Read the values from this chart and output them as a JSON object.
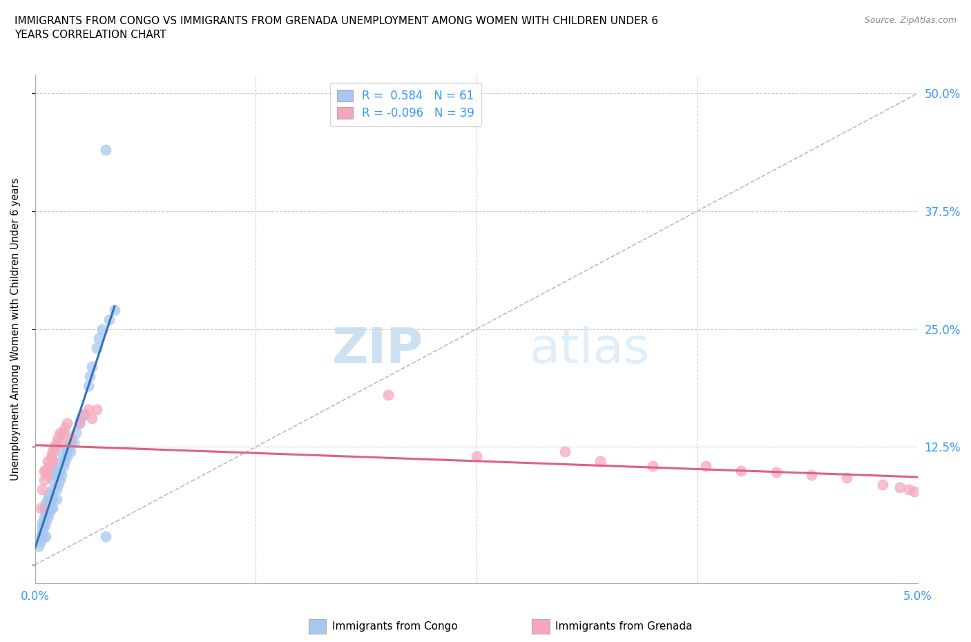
{
  "title": "IMMIGRANTS FROM CONGO VS IMMIGRANTS FROM GRENADA UNEMPLOYMENT AMONG WOMEN WITH CHILDREN UNDER 6\nYEARS CORRELATION CHART",
  "source": "Source: ZipAtlas.com",
  "ylabel": "Unemployment Among Women with Children Under 6 years",
  "xlim": [
    0.0,
    0.05
  ],
  "ylim": [
    -0.02,
    0.52
  ],
  "congo_R": 0.584,
  "congo_N": 61,
  "grenada_R": -0.096,
  "grenada_N": 39,
  "congo_color": "#A8C8F0",
  "grenada_color": "#F5A8BC",
  "congo_line_color": "#3070C0",
  "grenada_line_color": "#E06080",
  "diagonal_color": "#BBBBBB",
  "background_color": "#FFFFFF",
  "watermark_zip": "ZIP",
  "watermark_atlas": "atlas",
  "congo_x": [
    0.0002,
    0.0003,
    0.0003,
    0.0004,
    0.0004,
    0.0004,
    0.0005,
    0.0005,
    0.0005,
    0.0005,
    0.0006,
    0.0006,
    0.0006,
    0.0006,
    0.0007,
    0.0007,
    0.0007,
    0.0008,
    0.0008,
    0.0008,
    0.0009,
    0.0009,
    0.001,
    0.001,
    0.001,
    0.001,
    0.001,
    0.001,
    0.001,
    0.001,
    0.0012,
    0.0012,
    0.0013,
    0.0013,
    0.0014,
    0.0014,
    0.0015,
    0.0015,
    0.0015,
    0.0016,
    0.0017,
    0.0018,
    0.0018,
    0.0019,
    0.002,
    0.002,
    0.0022,
    0.0023,
    0.0025,
    0.0026,
    0.0028,
    0.003,
    0.0031,
    0.0032,
    0.0035,
    0.0036,
    0.0038,
    0.004,
    0.0042,
    0.0045,
    0.004
  ],
  "congo_y": [
    0.02,
    0.025,
    0.03,
    0.035,
    0.04,
    0.045,
    0.03,
    0.04,
    0.05,
    0.06,
    0.03,
    0.045,
    0.055,
    0.065,
    0.05,
    0.06,
    0.07,
    0.055,
    0.065,
    0.075,
    0.06,
    0.07,
    0.06,
    0.07,
    0.08,
    0.09,
    0.095,
    0.1,
    0.105,
    0.11,
    0.07,
    0.08,
    0.085,
    0.095,
    0.09,
    0.1,
    0.095,
    0.11,
    0.12,
    0.105,
    0.11,
    0.115,
    0.12,
    0.125,
    0.12,
    0.13,
    0.13,
    0.14,
    0.15,
    0.155,
    0.16,
    0.19,
    0.2,
    0.21,
    0.23,
    0.24,
    0.25,
    0.03,
    0.26,
    0.27,
    0.44
  ],
  "grenada_x": [
    0.0003,
    0.0004,
    0.0005,
    0.0005,
    0.0006,
    0.0007,
    0.0007,
    0.0008,
    0.0009,
    0.001,
    0.001,
    0.0011,
    0.0012,
    0.0013,
    0.0014,
    0.0015,
    0.0016,
    0.0017,
    0.0018,
    0.002,
    0.0025,
    0.0028,
    0.003,
    0.0032,
    0.0035,
    0.02,
    0.025,
    0.03,
    0.032,
    0.035,
    0.038,
    0.04,
    0.042,
    0.044,
    0.046,
    0.048,
    0.049,
    0.0495,
    0.0498
  ],
  "grenada_y": [
    0.06,
    0.08,
    0.09,
    0.1,
    0.1,
    0.095,
    0.11,
    0.105,
    0.115,
    0.11,
    0.12,
    0.125,
    0.13,
    0.135,
    0.14,
    0.13,
    0.14,
    0.145,
    0.15,
    0.135,
    0.15,
    0.16,
    0.165,
    0.155,
    0.165,
    0.18,
    0.115,
    0.12,
    0.11,
    0.105,
    0.105,
    0.1,
    0.098,
    0.095,
    0.092,
    0.085,
    0.082,
    0.08,
    0.078
  ]
}
